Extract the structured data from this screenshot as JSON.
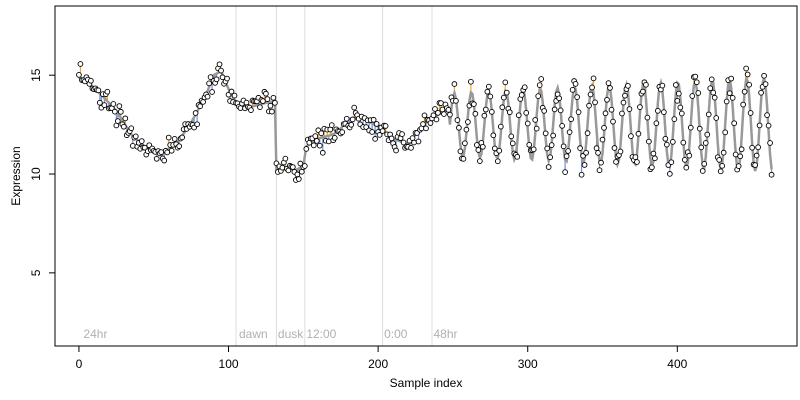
{
  "chart_data": {
    "type": "scatter",
    "title": "",
    "xlabel": "Sample index",
    "ylabel": "Expression",
    "xlim": [
      -16,
      480
    ],
    "ylim": [
      1.3,
      18.5
    ],
    "x_ticks": [
      0,
      100,
      200,
      300,
      400
    ],
    "y_ticks": [
      5,
      10,
      15
    ],
    "grid": false,
    "colors": {
      "fit_line": "#999999",
      "segment_above": "#f5a623",
      "segment_below": "#6f8fd6",
      "point_fill": "#ffffff",
      "point_stroke": "#000000",
      "divider": "#dddddd",
      "annotation": "#b0b0b0"
    },
    "phase_boundaries": [
      105,
      132,
      151,
      203,
      236
    ],
    "annotations": [
      {
        "label": "24hr",
        "x": 3
      },
      {
        "label": "dawn",
        "x": 107
      },
      {
        "label": "dusk",
        "x": 133
      },
      {
        "label": "12:00",
        "x": 152
      },
      {
        "label": "0:00",
        "x": 204
      },
      {
        "label": "48hr",
        "x": 237
      }
    ],
    "n_samples": 464,
    "fit_anchors": [
      [
        0,
        14.9
      ],
      [
        8,
        14.5
      ],
      [
        15,
        14.0
      ],
      [
        25,
        13.2
      ],
      [
        35,
        12.0
      ],
      [
        45,
        11.3
      ],
      [
        55,
        11.0
      ],
      [
        65,
        11.5
      ],
      [
        75,
        12.6
      ],
      [
        85,
        14.0
      ],
      [
        90,
        15.0
      ],
      [
        95,
        15.2
      ],
      [
        100,
        14.3
      ],
      [
        105,
        13.6
      ],
      [
        115,
        13.4
      ],
      [
        125,
        13.6
      ],
      [
        131,
        13.7
      ],
      [
        132,
        10.2
      ],
      [
        140,
        10.3
      ],
      [
        145,
        10.2
      ],
      [
        150,
        10.4
      ],
      [
        152,
        11.4
      ],
      [
        160,
        11.8
      ],
      [
        170,
        12.0
      ],
      [
        175,
        12.3
      ],
      [
        180,
        12.8
      ],
      [
        190,
        12.8
      ],
      [
        200,
        12.4
      ],
      [
        210,
        11.8
      ],
      [
        220,
        11.5
      ],
      [
        230,
        12.5
      ],
      [
        240,
        13.0
      ],
      [
        248,
        13.3
      ]
    ],
    "oscillation": {
      "start_index": 248,
      "center": 12.5,
      "amplitude_start": 1.6,
      "amplitude_end": 2.4,
      "period": 11.5
    },
    "noise_sd": 0.55
  }
}
